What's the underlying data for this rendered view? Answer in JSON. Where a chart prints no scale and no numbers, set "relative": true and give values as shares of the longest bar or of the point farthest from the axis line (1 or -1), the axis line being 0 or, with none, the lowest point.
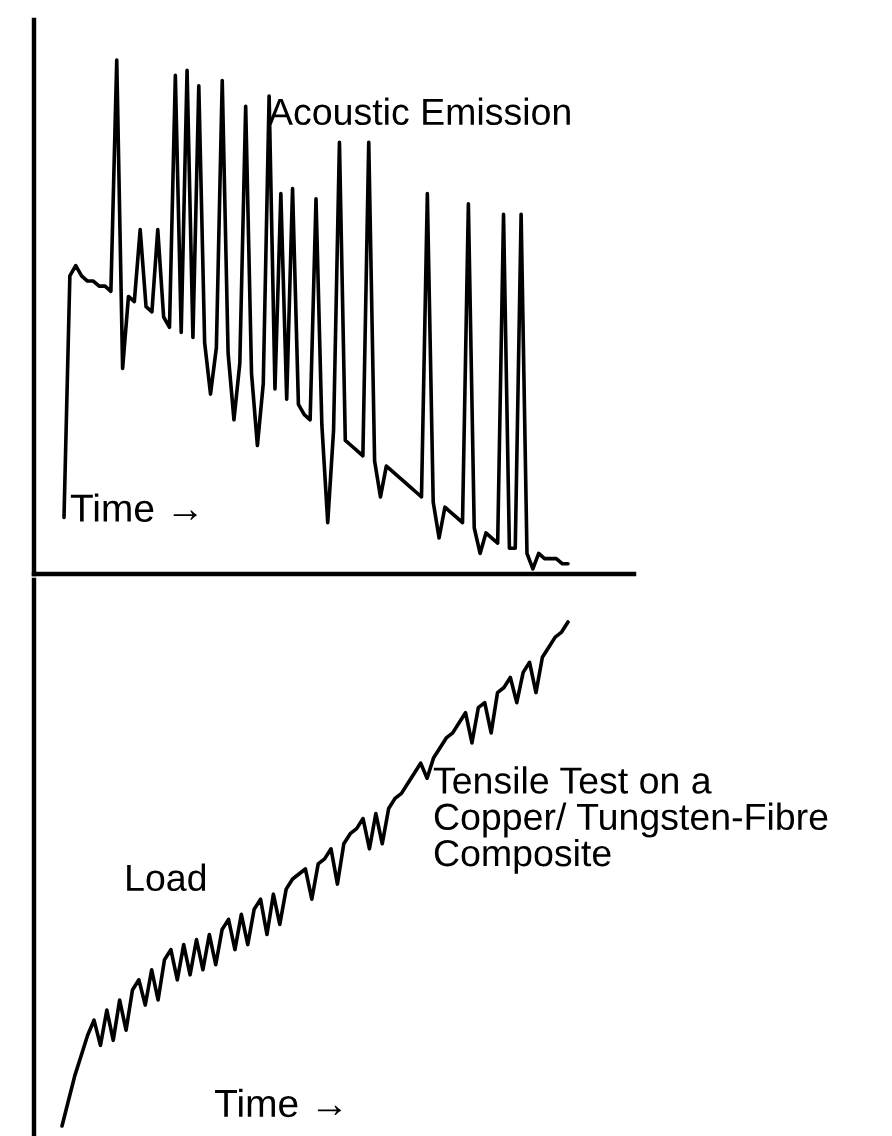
{
  "chart_data": [
    {
      "type": "line",
      "relative": true,
      "xlabel": "Time →",
      "annotations": [
        "Acoustic Emission"
      ],
      "grid": false,
      "legend": false,
      "marker": "none",
      "line_style": "solid",
      "categories": [
        null,
        null,
        null,
        null,
        null,
        null,
        null,
        null,
        null,
        null,
        null,
        null,
        null,
        null,
        null,
        null,
        null,
        null,
        null,
        null,
        null,
        null,
        null,
        null,
        null,
        null,
        null,
        null,
        null,
        null,
        null,
        null,
        null,
        null,
        null,
        null,
        null,
        null,
        null,
        null,
        null,
        null,
        null,
        null,
        null,
        null,
        null,
        null,
        null,
        null,
        null,
        null,
        null,
        null,
        null,
        null,
        null,
        null,
        null,
        null,
        null,
        null,
        null,
        null,
        null,
        null,
        null,
        null,
        null,
        null,
        null,
        null,
        null,
        null,
        null,
        null,
        null,
        null,
        null,
        null,
        null,
        null,
        null,
        null,
        null,
        null,
        null
      ],
      "series": [
        {
          "color": "#000000",
          "values": [
            0.11,
            0.58,
            0.6,
            0.58,
            0.57,
            0.57,
            0.56,
            0.56,
            0.55,
            1.0,
            0.4,
            0.54,
            0.53,
            0.67,
            0.52,
            0.51,
            0.67,
            0.5,
            0.48,
            0.97,
            0.47,
            0.98,
            0.46,
            0.95,
            0.45,
            0.35,
            0.44,
            0.96,
            0.43,
            0.3,
            0.41,
            0.91,
            0.39,
            0.25,
            0.37,
            0.93,
            0.36,
            0.74,
            0.34,
            0.75,
            0.33,
            0.31,
            0.3,
            0.73,
            0.29,
            0.1,
            0.28,
            0.84,
            0.26,
            0.25,
            0.24,
            0.23,
            0.84,
            0.22,
            0.15,
            0.21,
            0.2,
            0.19,
            0.18,
            0.17,
            0.16,
            0.15,
            0.74,
            0.14,
            0.07,
            0.13,
            0.12,
            0.11,
            0.1,
            0.72,
            0.09,
            0.04,
            0.08,
            0.07,
            0.06,
            0.7,
            0.05,
            0.05,
            0.7,
            0.04,
            0.01,
            0.04,
            0.03,
            0.03,
            0.03,
            0.02,
            0.02
          ]
        }
      ]
    },
    {
      "type": "line",
      "relative": true,
      "xlabel": "Time →",
      "annotations": [
        "Load",
        "Tensile Test on a\nCopper/ Tungsten-Fibre\nComposite"
      ],
      "grid": false,
      "legend": false,
      "marker": "none",
      "line_style": "solid",
      "categories": [
        null,
        null,
        null,
        null,
        null,
        null,
        null,
        null,
        null,
        null,
        null,
        null,
        null,
        null,
        null,
        null,
        null,
        null,
        null,
        null,
        null,
        null,
        null,
        null,
        null,
        null,
        null,
        null,
        null,
        null,
        null,
        null,
        null,
        null,
        null,
        null,
        null,
        null,
        null,
        null,
        null,
        null,
        null,
        null,
        null,
        null,
        null,
        null,
        null,
        null,
        null,
        null,
        null,
        null,
        null,
        null,
        null,
        null,
        null,
        null,
        null,
        null,
        null,
        null,
        null,
        null,
        null,
        null,
        null,
        null,
        null,
        null,
        null,
        null,
        null,
        null,
        null,
        null,
        null,
        null
      ],
      "series": [
        {
          "color": "#000000",
          "values": [
            0,
            0.05,
            0.1,
            0.14,
            0.18,
            0.21,
            0.16,
            0.23,
            0.17,
            0.25,
            0.19,
            0.27,
            0.29,
            0.24,
            0.31,
            0.25,
            0.33,
            0.35,
            0.29,
            0.36,
            0.3,
            0.37,
            0.31,
            0.38,
            0.32,
            0.39,
            0.41,
            0.35,
            0.42,
            0.36,
            0.43,
            0.45,
            0.38,
            0.46,
            0.4,
            0.47,
            0.49,
            0.5,
            0.51,
            0.45,
            0.52,
            0.53,
            0.55,
            0.48,
            0.56,
            0.58,
            0.59,
            0.61,
            0.55,
            0.62,
            0.56,
            0.63,
            0.65,
            0.66,
            0.68,
            0.7,
            0.72,
            0.69,
            0.73,
            0.75,
            0.77,
            0.78,
            0.8,
            0.82,
            0.76,
            0.83,
            0.84,
            0.78,
            0.86,
            0.87,
            0.89,
            0.84,
            0.9,
            0.92,
            0.86,
            0.93,
            0.95,
            0.97,
            0.98,
            1.0
          ]
        }
      ]
    }
  ]
}
